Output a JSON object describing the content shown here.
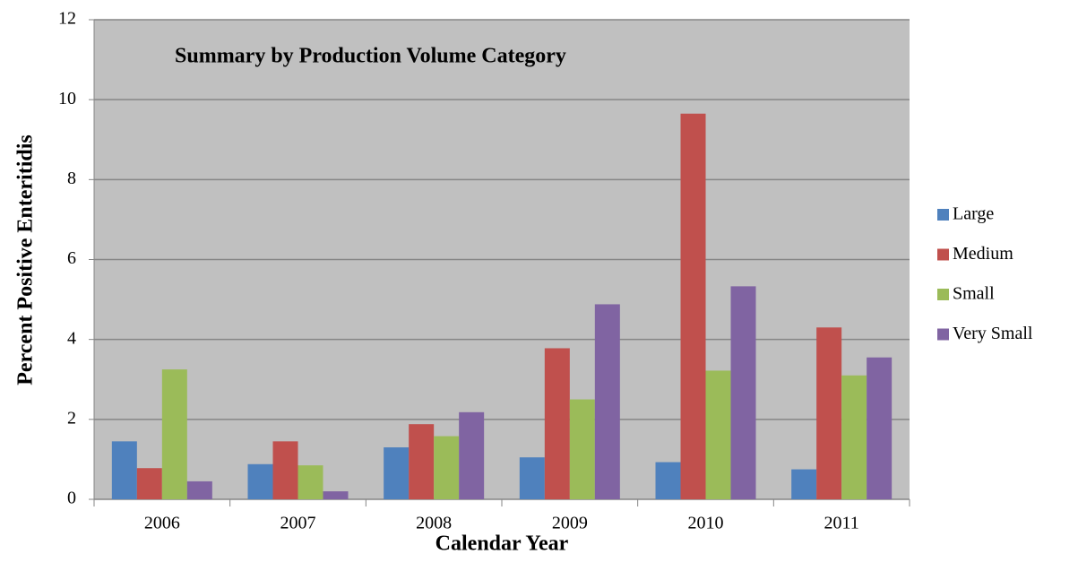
{
  "chart_data": {
    "type": "bar",
    "title": "Summary by Production Volume Category",
    "x_label": "Calendar Year",
    "y_label": "Percent Positive Enteritidis",
    "categories": [
      "2006",
      "2007",
      "2008",
      "2009",
      "2010",
      "2011"
    ],
    "series": [
      {
        "name": "Large",
        "color": "#4f81bd",
        "values": [
          1.45,
          0.88,
          1.3,
          1.05,
          0.93,
          0.75
        ]
      },
      {
        "name": "Medium",
        "color": "#c0504d",
        "values": [
          0.78,
          1.45,
          1.88,
          3.78,
          9.65,
          4.3
        ]
      },
      {
        "name": "Small",
        "color": "#9bbb59",
        "values": [
          3.25,
          0.85,
          1.58,
          2.5,
          3.22,
          3.1
        ]
      },
      {
        "name": "Very Small",
        "color": "#8064a2",
        "values": [
          0.45,
          0.2,
          2.18,
          4.88,
          5.33,
          3.55
        ]
      }
    ],
    "ylim": [
      0,
      12
    ],
    "yticks": [
      0,
      2,
      4,
      6,
      8,
      10,
      12
    ],
    "grid": true,
    "legend": "right"
  }
}
